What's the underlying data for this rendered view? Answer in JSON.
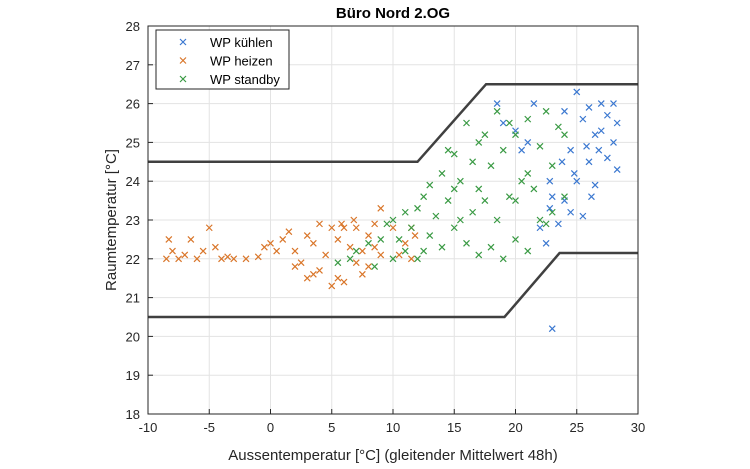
{
  "chart_data": {
    "type": "scatter",
    "title": "Büro Nord 2.OG",
    "xlabel": "Aussentemperatur [°C] (gleitender Mittelwert 48h)",
    "ylabel": "Raumtemperatur [°C]",
    "xlim": [
      -10,
      30
    ],
    "ylim": [
      18,
      28
    ],
    "xticks": [
      -10,
      -5,
      0,
      5,
      10,
      15,
      20,
      25,
      30
    ],
    "yticks": [
      18,
      19,
      20,
      21,
      22,
      23,
      24,
      25,
      26,
      27,
      28
    ],
    "grid": true,
    "legend_position": "top-left",
    "marker": "x",
    "series": [
      {
        "name": "WP kühlen",
        "color": "#3b78d0",
        "points": [
          [
            18.5,
            26.0
          ],
          [
            19,
            25.5
          ],
          [
            20,
            25.3
          ],
          [
            20.5,
            24.8
          ],
          [
            21,
            25.0
          ],
          [
            21.5,
            26.0
          ],
          [
            22,
            22.8
          ],
          [
            22.5,
            22.4
          ],
          [
            22.8,
            23.3
          ],
          [
            23,
            23.6
          ],
          [
            23,
            20.2
          ],
          [
            23.5,
            22.9
          ],
          [
            24,
            23.5
          ],
          [
            24,
            25.8
          ],
          [
            24.5,
            24.8
          ],
          [
            24.5,
            23.2
          ],
          [
            25,
            26.3
          ],
          [
            25,
            24.0
          ],
          [
            25.5,
            25.6
          ],
          [
            25.5,
            23.1
          ],
          [
            26,
            24.5
          ],
          [
            26,
            25.9
          ],
          [
            26.5,
            23.9
          ],
          [
            26.5,
            25.2
          ],
          [
            27,
            26.0
          ],
          [
            27,
            25.3
          ],
          [
            27.5,
            25.7
          ],
          [
            27.5,
            24.6
          ],
          [
            28,
            26.0
          ],
          [
            28,
            25.0
          ],
          [
            28.3,
            24.3
          ],
          [
            28.3,
            25.5
          ],
          [
            26.8,
            24.8
          ],
          [
            25.8,
            24.9
          ],
          [
            24.8,
            24.2
          ],
          [
            23.8,
            24.5
          ],
          [
            26.2,
            23.6
          ],
          [
            22.8,
            24.0
          ]
        ]
      },
      {
        "name": "WP heizen",
        "color": "#d9762a",
        "points": [
          [
            -8.5,
            22
          ],
          [
            -8.3,
            22.5
          ],
          [
            -8,
            22.2
          ],
          [
            -7.5,
            22
          ],
          [
            -7,
            22.1
          ],
          [
            -6.5,
            22.5
          ],
          [
            -6,
            22
          ],
          [
            -5.5,
            22.2
          ],
          [
            -5,
            22.8
          ],
          [
            -4.5,
            22.3
          ],
          [
            -4,
            22
          ],
          [
            -3.5,
            22.05
          ],
          [
            -3,
            22
          ],
          [
            -2,
            22
          ],
          [
            -1,
            22.05
          ],
          [
            -0.5,
            22.3
          ],
          [
            0,
            22.4
          ],
          [
            0.5,
            22.2
          ],
          [
            1,
            22.5
          ],
          [
            1.5,
            22.7
          ],
          [
            2,
            22.2
          ],
          [
            2,
            21.8
          ],
          [
            2.5,
            21.9
          ],
          [
            3,
            22.6
          ],
          [
            3,
            21.5
          ],
          [
            3.5,
            22.4
          ],
          [
            3.5,
            21.6
          ],
          [
            4,
            22.9
          ],
          [
            4,
            21.7
          ],
          [
            4.5,
            22.1
          ],
          [
            5,
            22.8
          ],
          [
            5,
            21.3
          ],
          [
            5.5,
            21.5
          ],
          [
            5.5,
            22.5
          ],
          [
            6,
            21.4
          ],
          [
            6,
            22.8
          ],
          [
            6.5,
            22.3
          ],
          [
            7,
            21.9
          ],
          [
            7,
            22.8
          ],
          [
            7.5,
            22.2
          ],
          [
            7.5,
            21.6
          ],
          [
            8,
            22.6
          ],
          [
            8,
            21.8
          ],
          [
            8.5,
            22.9
          ],
          [
            8.5,
            22.3
          ],
          [
            9,
            23.3
          ],
          [
            9,
            22.1
          ],
          [
            10,
            22.8
          ],
          [
            10.5,
            22.1
          ],
          [
            11,
            22.4
          ],
          [
            11.5,
            22
          ],
          [
            11.8,
            22.6
          ],
          [
            11.5,
            22.8
          ],
          [
            6.8,
            23.0
          ],
          [
            5.8,
            22.9
          ]
        ]
      },
      {
        "name": "WP standby",
        "color": "#3a9a44",
        "points": [
          [
            5.5,
            21.9
          ],
          [
            6.5,
            22.0
          ],
          [
            7,
            22.2
          ],
          [
            8,
            22.4
          ],
          [
            8.5,
            21.8
          ],
          [
            9,
            22.5
          ],
          [
            9.5,
            22.9
          ],
          [
            10,
            22.0
          ],
          [
            10,
            23.0
          ],
          [
            10.5,
            22.5
          ],
          [
            11,
            22.2
          ],
          [
            11,
            23.2
          ],
          [
            11.5,
            22.8
          ],
          [
            12,
            23.3
          ],
          [
            12.5,
            22.2
          ],
          [
            12.5,
            23.6
          ],
          [
            13,
            23.9
          ],
          [
            13,
            22.6
          ],
          [
            13.5,
            23.1
          ],
          [
            14,
            24.2
          ],
          [
            14,
            22.3
          ],
          [
            14.5,
            23.5
          ],
          [
            15,
            24.7
          ],
          [
            15,
            22.8
          ],
          [
            15.5,
            24.0
          ],
          [
            15.5,
            23.0
          ],
          [
            16,
            25.5
          ],
          [
            16,
            22.4
          ],
          [
            16.5,
            24.5
          ],
          [
            16.5,
            23.2
          ],
          [
            17,
            23.8
          ],
          [
            17,
            22.1
          ],
          [
            17.5,
            25.2
          ],
          [
            17.5,
            23.5
          ],
          [
            18,
            24.4
          ],
          [
            18,
            22.3
          ],
          [
            18.5,
            25.8
          ],
          [
            18.5,
            23.0
          ],
          [
            19,
            24.8
          ],
          [
            19,
            22.0
          ],
          [
            19.5,
            23.6
          ],
          [
            20,
            25.2
          ],
          [
            20,
            22.5
          ],
          [
            20.5,
            24.0
          ],
          [
            21,
            25.6
          ],
          [
            21,
            22.2
          ],
          [
            21.5,
            23.8
          ],
          [
            22,
            24.9
          ],
          [
            22,
            23.0
          ],
          [
            22.5,
            25.8
          ],
          [
            23,
            24.4
          ],
          [
            23,
            23.2
          ],
          [
            23.5,
            25.4
          ],
          [
            24,
            25.2
          ],
          [
            24,
            23.6
          ],
          [
            14.5,
            24.8
          ],
          [
            19.5,
            25.5
          ],
          [
            12,
            22.0
          ],
          [
            15,
            23.8
          ],
          [
            20,
            23.5
          ],
          [
            17,
            25.0
          ],
          [
            21,
            24.2
          ],
          [
            22.5,
            22.9
          ]
        ]
      }
    ],
    "limit_lines": [
      {
        "name": "upper-limit",
        "color": "#404040",
        "points": [
          [
            -10,
            24.5
          ],
          [
            12,
            24.5
          ],
          [
            17.6,
            26.5
          ],
          [
            30,
            26.5
          ]
        ]
      },
      {
        "name": "lower-limit",
        "color": "#404040",
        "points": [
          [
            -10,
            20.5
          ],
          [
            19.1,
            20.5
          ],
          [
            23.6,
            22.15
          ],
          [
            30,
            22.15
          ]
        ]
      }
    ]
  }
}
